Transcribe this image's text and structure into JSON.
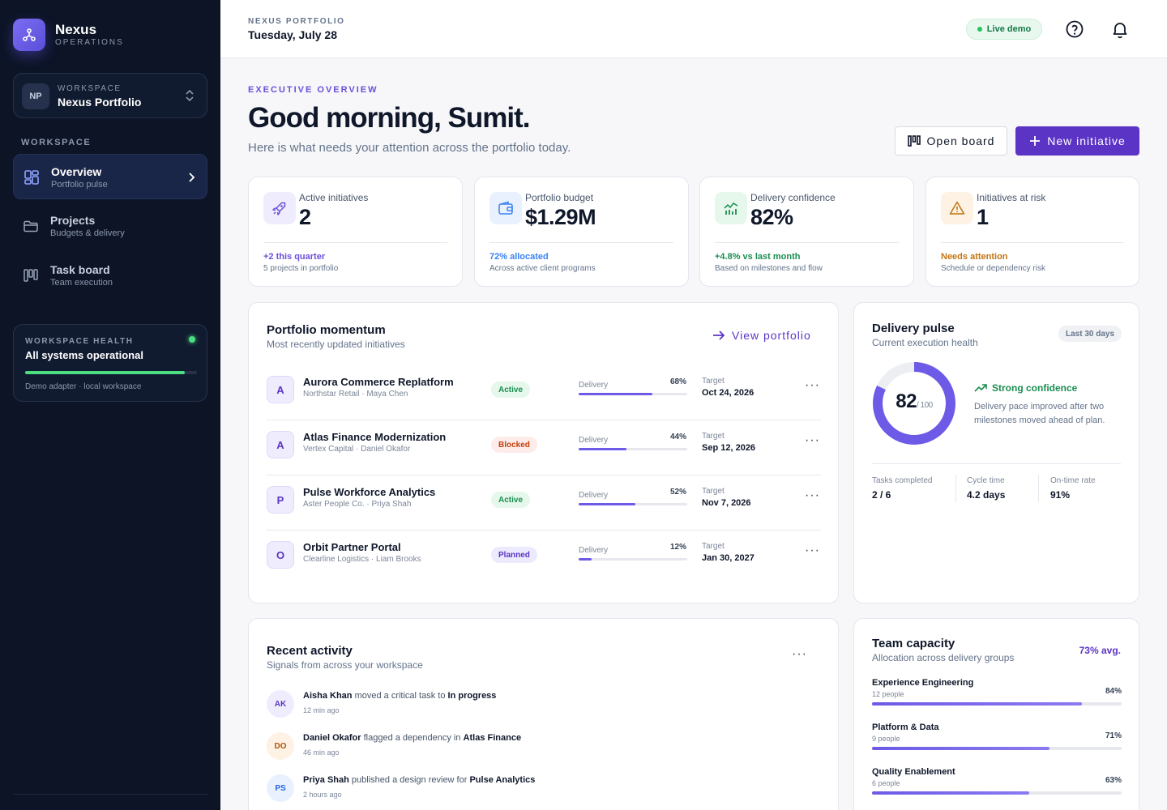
{
  "brand": {
    "name": "Nexus",
    "subtitle": "OPERATIONS"
  },
  "workspace_switcher": {
    "avatar": "NP",
    "label": "WORKSPACE",
    "name": "Nexus Portfolio"
  },
  "sidebar": {
    "section_label": "WORKSPACE",
    "items": [
      {
        "title": "Overview",
        "subtitle": "Portfolio pulse",
        "icon": "grid-icon",
        "active": true
      },
      {
        "title": "Projects",
        "subtitle": "Budgets & delivery",
        "icon": "folder-icon",
        "active": false
      },
      {
        "title": "Task board",
        "subtitle": "Team execution",
        "icon": "kanban-icon",
        "active": false
      }
    ],
    "health": {
      "label": "WORKSPACE HEALTH",
      "title": "All systems operational",
      "level": 0.93,
      "footer": "Demo adapter · local workspace"
    }
  },
  "topbar": {
    "label": "NEXUS PORTFOLIO",
    "date": "Tuesday, July 28",
    "live_badge": "Live demo",
    "icons": [
      "help-icon",
      "bell-icon"
    ]
  },
  "header": {
    "eyebrow": "EXECUTIVE OVERVIEW",
    "greeting": "Good morning, Sumit.",
    "subtitle": "Here is what needs your attention across the portfolio today.",
    "open_board": "Open board",
    "new_initiative": "New initiative"
  },
  "kpis": [
    {
      "label": "Active initiatives",
      "value": "2",
      "foot": "+2 this quarter",
      "foot_sub": "5 projects in portfolio",
      "icon": "rocket-icon",
      "color": "#6d4fd8",
      "bg": "#efedfd"
    },
    {
      "label": "Portfolio budget",
      "value": "$1.29M",
      "foot": "72% allocated",
      "foot_sub": "Across active client programs",
      "icon": "wallet-icon",
      "color": "#3b82f6",
      "bg": "#e8f1fd"
    },
    {
      "label": "Delivery confidence",
      "value": "82%",
      "foot": "+4.8% vs last month",
      "foot_sub": "Based on milestones and flow",
      "icon": "chart-icon",
      "color": "#1a8d51",
      "bg": "#e6f7ec"
    },
    {
      "label": "Initiatives at risk",
      "value": "1",
      "foot": "Needs attention",
      "foot_sub": "Schedule or dependency risk",
      "icon": "warning-icon",
      "color": "#c27412",
      "bg": "#fdf2e3"
    }
  ],
  "momentum": {
    "title": "Portfolio momentum",
    "subtitle": "Most recently updated initiatives",
    "link": "View portfolio",
    "delivery_label": "Delivery",
    "target_label": "Target",
    "rows": [
      {
        "avatar": "A",
        "name": "Aurora Commerce Replatform",
        "meta": "Northstar Retail · Maya Chen",
        "status": "Active",
        "status_class": "st-active",
        "pct_text": "68%",
        "pct": 68,
        "target": "Oct 24, 2026"
      },
      {
        "avatar": "A",
        "name": "Atlas Finance Modernization",
        "meta": "Vertex Capital · Daniel Okafor",
        "status": "Blocked",
        "status_class": "st-blocked",
        "pct_text": "44%",
        "pct": 44,
        "target": "Sep 12, 2026"
      },
      {
        "avatar": "P",
        "name": "Pulse Workforce Analytics",
        "meta": "Aster People Co. · Priya Shah",
        "status": "Active",
        "status_class": "st-active",
        "pct_text": "52%",
        "pct": 52,
        "target": "Nov 7, 2026"
      },
      {
        "avatar": "O",
        "name": "Orbit Partner Portal",
        "meta": "Clearline Logistics · Liam Brooks",
        "status": "Planned",
        "status_class": "st-planned",
        "pct_text": "12%",
        "pct": 12,
        "target": "Jan 30, 2027"
      }
    ]
  },
  "pulse": {
    "title": "Delivery pulse",
    "subtitle": "Current execution health",
    "range": "Last 30 days",
    "score": "82",
    "score_max": "/ 100",
    "score_value": 82,
    "confidence_title": "Strong confidence",
    "confidence_text": "Delivery pace improved after two milestones moved ahead of plan.",
    "stats": [
      {
        "label": "Tasks completed",
        "value": "2 / 6"
      },
      {
        "label": "Cycle time",
        "value": "4.2 days"
      },
      {
        "label": "On-time rate",
        "value": "91%"
      }
    ]
  },
  "activity": {
    "title": "Recent activity",
    "subtitle": "Signals from across your workspace",
    "items": [
      {
        "initials": "AK",
        "actor": "Aisha Khan",
        "action": "moved a critical task to",
        "object": "In progress",
        "time": "12 min ago",
        "bg": "#efedfd",
        "fg": "#5b34c6"
      },
      {
        "initials": "DO",
        "actor": "Daniel Okafor",
        "action": "flagged a dependency in",
        "object": "Atlas Finance",
        "time": "46 min ago",
        "bg": "#fdf2e3",
        "fg": "#b45309"
      },
      {
        "initials": "PS",
        "actor": "Priya Shah",
        "action": "published a design review for",
        "object": "Pulse Analytics",
        "time": "2 hours ago",
        "bg": "#e8f1fd",
        "fg": "#2563eb"
      }
    ]
  },
  "capacity": {
    "title": "Team capacity",
    "subtitle": "Allocation across delivery groups",
    "avg": "73% avg.",
    "teams": [
      {
        "name": "Experience Engineering",
        "people": "12 people",
        "pct_text": "84%",
        "pct": 84
      },
      {
        "name": "Platform & Data",
        "people": "9 people",
        "pct_text": "71%",
        "pct": 71
      },
      {
        "name": "Quality Enablement",
        "people": "6 people",
        "pct_text": "63%",
        "pct": 63
      }
    ]
  }
}
